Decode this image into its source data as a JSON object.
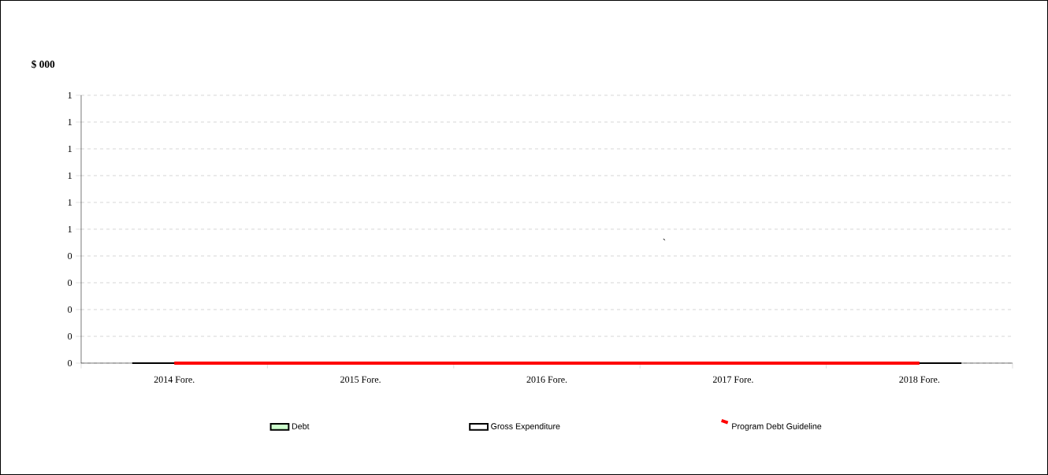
{
  "chart_data": {
    "type": "bar",
    "ylabel": "$ 000",
    "categories": [
      "2014 Fore.",
      "2015 Fore.",
      "2016 Fore.",
      "2017 Fore.",
      "2018 Fore."
    ],
    "series": [
      {
        "name": "Debt",
        "color": "#ccffcc",
        "values": [
          0,
          0,
          0,
          0,
          0
        ]
      },
      {
        "name": "Gross Expenditure",
        "color": "#ffffff",
        "values": [
          0,
          0,
          0,
          0,
          0
        ]
      },
      {
        "name": "Program Debt Guideline",
        "type": "line",
        "color": "#ff0000",
        "values": [
          0,
          0,
          0,
          0,
          0
        ]
      }
    ],
    "ylim": [
      0,
      1
    ],
    "yticks": [
      {
        "value": 0,
        "label": "0"
      },
      {
        "value": 0.1,
        "label": "0"
      },
      {
        "value": 0.2,
        "label": "0"
      },
      {
        "value": 0.3,
        "label": "0"
      },
      {
        "value": 0.4,
        "label": "0"
      },
      {
        "value": 0.5,
        "label": "1"
      },
      {
        "value": 0.6,
        "label": "1"
      },
      {
        "value": 0.7,
        "label": "1"
      },
      {
        "value": 0.8,
        "label": "1"
      },
      {
        "value": 0.9,
        "label": "1"
      },
      {
        "value": 1,
        "label": "1"
      }
    ],
    "grid": "y",
    "legend": "bottom",
    "annotations": [
      "`"
    ]
  }
}
